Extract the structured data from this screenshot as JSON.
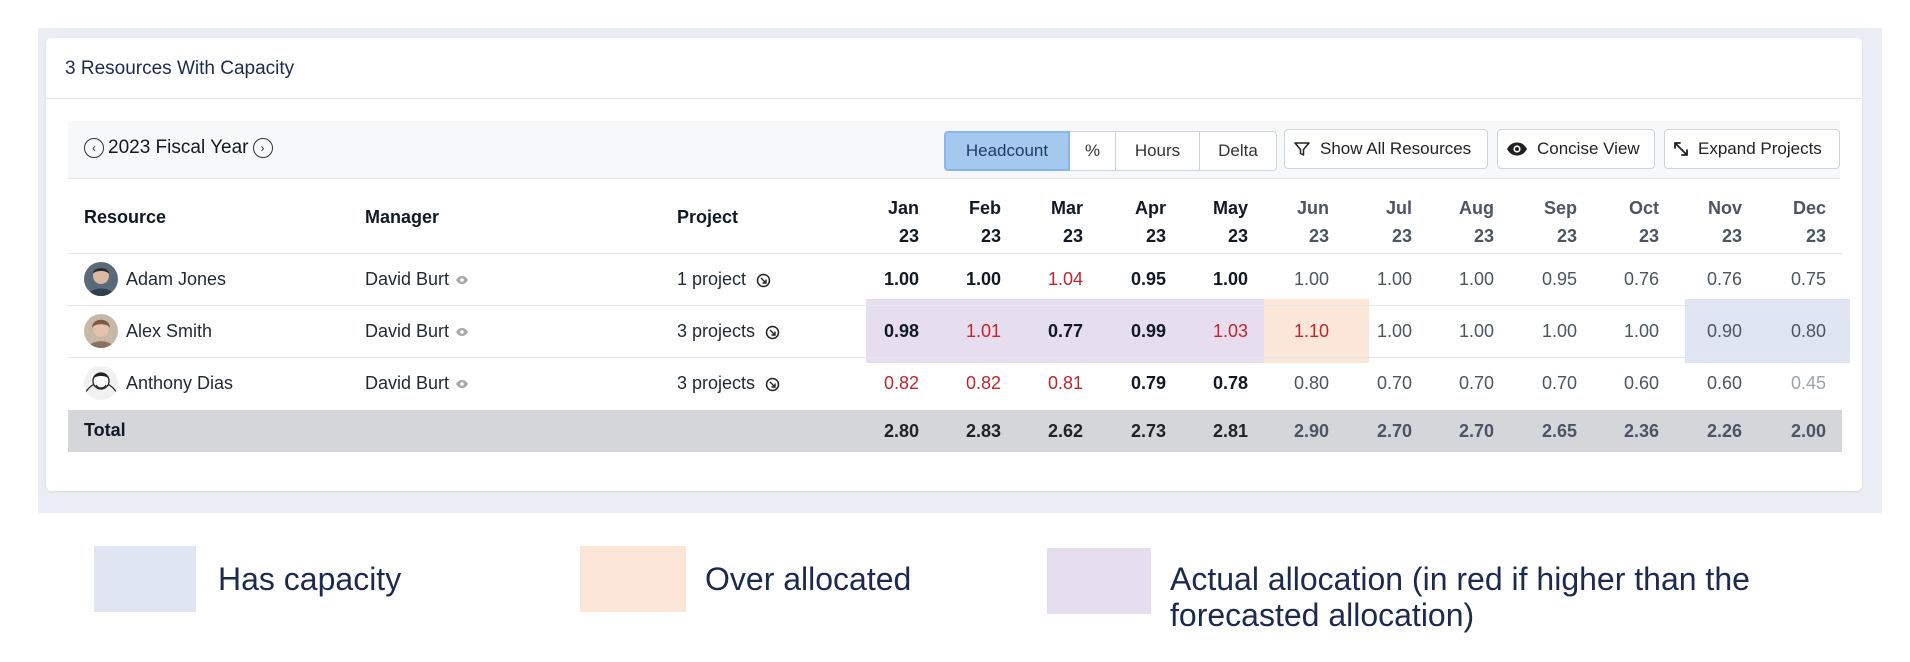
{
  "card": {
    "title": "3 Resources With Capacity"
  },
  "toolbar": {
    "fiscal_year": "2023 Fiscal Year",
    "segments": [
      "Headcount",
      "%",
      "Hours",
      "Delta"
    ],
    "active_segment": "Headcount",
    "show_all": "Show All Resources",
    "concise": "Concise View",
    "expand": "Expand Projects"
  },
  "table": {
    "headers": {
      "resource": "Resource",
      "manager": "Manager",
      "project": "Project"
    },
    "months": [
      {
        "m": "Jan",
        "y": "23"
      },
      {
        "m": "Feb",
        "y": "23"
      },
      {
        "m": "Mar",
        "y": "23"
      },
      {
        "m": "Apr",
        "y": "23"
      },
      {
        "m": "May",
        "y": "23"
      },
      {
        "m": "Jun",
        "y": "23"
      },
      {
        "m": "Jul",
        "y": "23"
      },
      {
        "m": "Aug",
        "y": "23"
      },
      {
        "m": "Sep",
        "y": "23"
      },
      {
        "m": "Oct",
        "y": "23"
      },
      {
        "m": "Nov",
        "y": "23"
      },
      {
        "m": "Dec",
        "y": "23"
      }
    ],
    "rows": [
      {
        "resource": "Adam Jones",
        "manager": "David Burt",
        "project": "1 project",
        "values": [
          "1.00",
          "1.00",
          "1.04",
          "0.95",
          "1.00",
          "1.00",
          "1.00",
          "1.00",
          "0.95",
          "0.76",
          "0.76",
          "0.75"
        ],
        "styles": [
          "black",
          "black",
          "red",
          "black",
          "black",
          "grey",
          "grey",
          "grey",
          "grey",
          "grey",
          "grey",
          "grey"
        ]
      },
      {
        "resource": "Alex Smith",
        "manager": "David Burt",
        "project": "3 projects",
        "values": [
          "0.98",
          "1.01",
          "0.77",
          "0.99",
          "1.03",
          "1.10",
          "1.00",
          "1.00",
          "1.00",
          "1.00",
          "0.90",
          "0.80"
        ],
        "styles": [
          "black",
          "red",
          "black",
          "black",
          "red",
          "red",
          "grey",
          "grey",
          "grey",
          "grey",
          "grey",
          "grey"
        ]
      },
      {
        "resource": "Anthony Dias",
        "manager": "David Burt",
        "project": "3 projects",
        "values": [
          "0.82",
          "0.82",
          "0.81",
          "0.79",
          "0.78",
          "0.80",
          "0.70",
          "0.70",
          "0.70",
          "0.60",
          "0.60",
          "0.45"
        ],
        "styles": [
          "red",
          "red",
          "red",
          "black",
          "black",
          "grey",
          "grey",
          "grey",
          "grey",
          "grey",
          "grey",
          "light"
        ]
      }
    ],
    "total": {
      "label": "Total",
      "values": [
        "2.80",
        "2.83",
        "2.62",
        "2.73",
        "2.81",
        "2.90",
        "2.70",
        "2.70",
        "2.65",
        "2.36",
        "2.26",
        "2.00"
      ]
    }
  },
  "legend": {
    "capacity": "Has capacity",
    "over": "Over allocated",
    "actual": "Actual allocation (in red if higher than the forecasted allocation)"
  },
  "colors": {
    "capacity": "#dfe5f3",
    "over": "#fbe6d8",
    "actual": "#e6ddef",
    "active_segment": "#a4c8ee",
    "red_value": "#c0262d"
  }
}
